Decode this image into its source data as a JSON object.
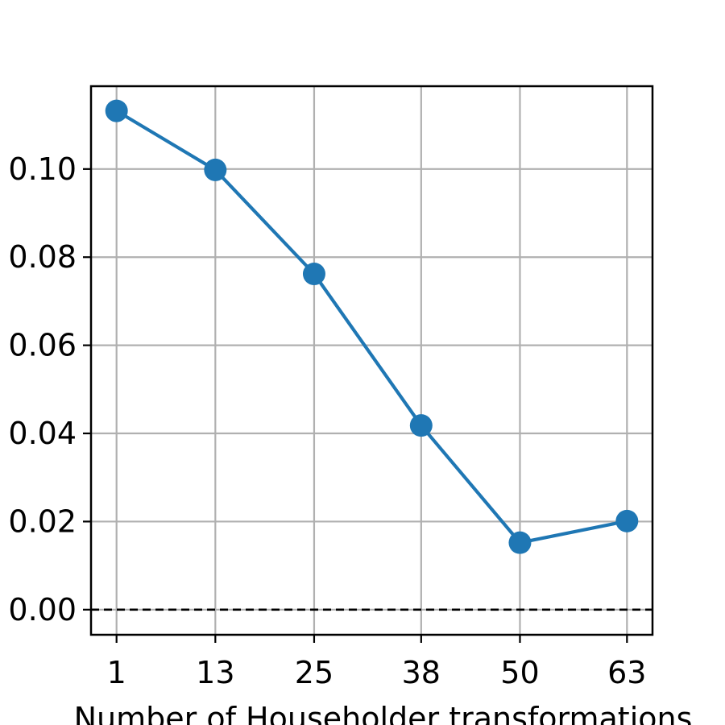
{
  "chart_data": {
    "type": "line",
    "title": "",
    "xlabel": "Number of Householder transformations",
    "ylabel": "",
    "x": [
      1,
      13,
      25,
      38,
      50,
      63
    ],
    "x_tick_labels": [
      "1",
      "13",
      "25",
      "38",
      "50",
      "63"
    ],
    "xlim": [
      -2.1,
      66.1
    ],
    "ylim": [
      -0.0057,
      0.1188
    ],
    "y_ticks": [
      0.0,
      0.02,
      0.04,
      0.06,
      0.08,
      0.1
    ],
    "y_tick_labels": [
      "0.00",
      "0.02",
      "0.04",
      "0.06",
      "0.08",
      "0.10"
    ],
    "series": [
      {
        "values": [
          0.1132,
          0.0998,
          0.0762,
          0.0418,
          0.0152,
          0.0201
        ],
        "color": "#1f77b4",
        "marker": "circle"
      }
    ],
    "reference_line": {
      "y": 0.0,
      "style": "dashed",
      "color": "#000000"
    },
    "grid": true,
    "grid_color": "#b0b0b0"
  }
}
